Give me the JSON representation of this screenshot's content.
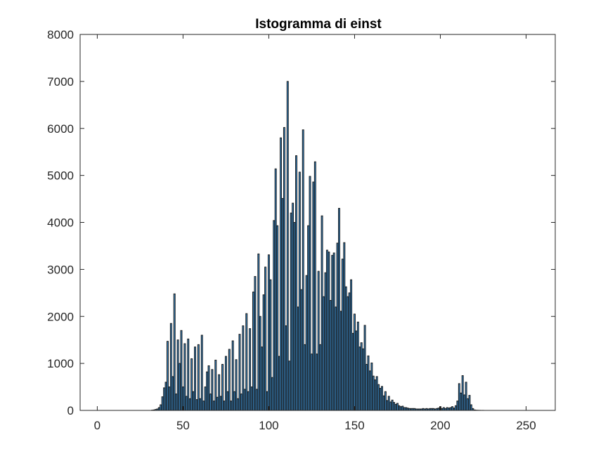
{
  "chart_data": {
    "type": "bar",
    "title": "Istogramma di einst",
    "xlabel": "",
    "ylabel": "",
    "xlim": [
      -10,
      267
    ],
    "ylim": [
      0,
      8000
    ],
    "xticks": [
      0,
      50,
      100,
      150,
      200,
      250
    ],
    "yticks": [
      0,
      1000,
      2000,
      3000,
      4000,
      5000,
      6000,
      7000,
      8000
    ],
    "xtick_labels": [
      "0",
      "50",
      "100",
      "150",
      "200",
      "250"
    ],
    "ytick_labels": [
      "0",
      "1000",
      "2000",
      "3000",
      "4000",
      "5000",
      "6000",
      "7000",
      "8000"
    ],
    "grid": false,
    "bar_color": "#3a8fd2",
    "edge_color": "#1a1a1a",
    "x": [
      0,
      1,
      2,
      3,
      4,
      5,
      6,
      7,
      8,
      9,
      10,
      11,
      12,
      13,
      14,
      15,
      16,
      17,
      18,
      19,
      20,
      21,
      22,
      23,
      24,
      25,
      26,
      27,
      28,
      29,
      30,
      31,
      32,
      33,
      34,
      35,
      36,
      37,
      38,
      39,
      40,
      41,
      42,
      43,
      44,
      45,
      46,
      47,
      48,
      49,
      50,
      51,
      52,
      53,
      54,
      55,
      56,
      57,
      58,
      59,
      60,
      61,
      62,
      63,
      64,
      65,
      66,
      67,
      68,
      69,
      70,
      71,
      72,
      73,
      74,
      75,
      76,
      77,
      78,
      79,
      80,
      81,
      82,
      83,
      84,
      85,
      86,
      87,
      88,
      89,
      90,
      91,
      92,
      93,
      94,
      95,
      96,
      97,
      98,
      99,
      100,
      101,
      102,
      103,
      104,
      105,
      106,
      107,
      108,
      109,
      110,
      111,
      112,
      113,
      114,
      115,
      116,
      117,
      118,
      119,
      120,
      121,
      122,
      123,
      124,
      125,
      126,
      127,
      128,
      129,
      130,
      131,
      132,
      133,
      134,
      135,
      136,
      137,
      138,
      139,
      140,
      141,
      142,
      143,
      144,
      145,
      146,
      147,
      148,
      149,
      150,
      151,
      152,
      153,
      154,
      155,
      156,
      157,
      158,
      159,
      160,
      161,
      162,
      163,
      164,
      165,
      166,
      167,
      168,
      169,
      170,
      171,
      172,
      173,
      174,
      175,
      176,
      177,
      178,
      179,
      180,
      181,
      182,
      183,
      184,
      185,
      186,
      187,
      188,
      189,
      190,
      191,
      192,
      193,
      194,
      195,
      196,
      197,
      198,
      199,
      200,
      201,
      202,
      203,
      204,
      205,
      206,
      207,
      208,
      209,
      210,
      211,
      212,
      213,
      214,
      215,
      216,
      217,
      218,
      219,
      220,
      221,
      222,
      223,
      224,
      225,
      226,
      227,
      228,
      229,
      230,
      231,
      232,
      233,
      234,
      235,
      236,
      237,
      238,
      239,
      240,
      241,
      242,
      243,
      244,
      245,
      246,
      247,
      248,
      249,
      250,
      251,
      252,
      253,
      254,
      255
    ],
    "values": [
      0,
      0,
      0,
      0,
      0,
      0,
      0,
      0,
      0,
      0,
      0,
      0,
      0,
      0,
      0,
      0,
      0,
      0,
      0,
      0,
      0,
      0,
      0,
      0,
      0,
      0,
      0,
      0,
      0,
      0,
      0,
      0,
      5,
      10,
      20,
      30,
      60,
      120,
      290,
      480,
      600,
      1470,
      500,
      1850,
      720,
      2480,
      350,
      1500,
      1000,
      1700,
      500,
      1420,
      300,
      1520,
      250,
      1100,
      400,
      1350,
      230,
      1400,
      250,
      1600,
      200,
      500,
      820,
      950,
      350,
      870,
      200,
      1070,
      280,
      760,
      300,
      980,
      200,
      1150,
      400,
      1300,
      200,
      1480,
      400,
      1080,
      250,
      1620,
      350,
      1800,
      450,
      2060,
      400,
      1740,
      500,
      2520,
      2850,
      450,
      3330,
      2000,
      1350,
      2460,
      3050,
      400,
      3310,
      2780,
      700,
      4040,
      5140,
      3930,
      1150,
      5800,
      4510,
      6020,
      1800,
      7000,
      1050,
      4200,
      4410,
      4000,
      5420,
      2200,
      5070,
      2570,
      5970,
      1400,
      2870,
      3930,
      4980,
      1200,
      4860,
      5290,
      1200,
      2960,
      1400,
      4140,
      2420,
      2930,
      3410,
      3370,
      2340,
      3300,
      3350,
      2200,
      3560,
      4300,
      2110,
      3220,
      3570,
      2630,
      2420,
      2500,
      2780,
      1640,
      2050,
      1690,
      1880,
      1350,
      1440,
      1310,
      1810,
      980,
      1160,
      840,
      1010,
      730,
      650,
      720,
      550,
      470,
      510,
      310,
      400,
      210,
      300,
      180,
      220,
      170,
      130,
      150,
      100,
      80,
      90,
      60,
      60,
      50,
      40,
      40,
      40,
      40,
      30,
      30,
      30,
      30,
      40,
      30,
      40,
      30,
      40,
      40,
      40,
      30,
      40,
      50,
      80,
      40,
      60,
      40,
      60,
      50,
      60,
      80,
      50,
      100,
      200,
      570,
      370,
      740,
      330,
      600,
      250,
      320,
      120,
      40,
      10,
      5,
      3,
      2,
      1,
      1,
      0,
      0,
      0,
      0,
      0,
      0,
      0,
      0,
      0,
      0,
      0,
      0,
      0,
      0,
      0,
      0,
      0,
      0,
      0,
      0,
      0,
      0,
      0,
      0,
      0,
      0,
      0,
      0,
      0,
      0
    ]
  }
}
